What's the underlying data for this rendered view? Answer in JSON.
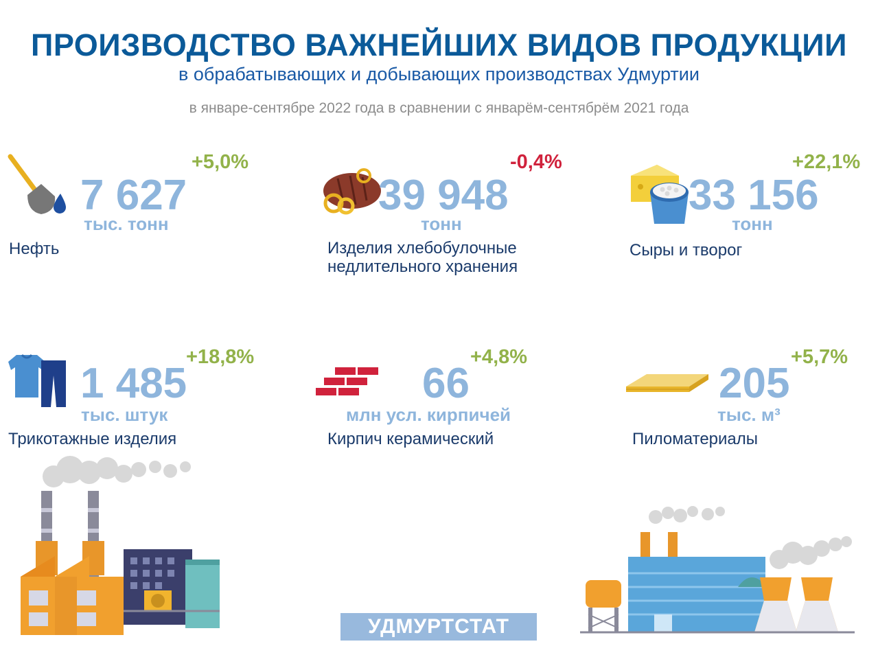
{
  "header": {
    "title": "ПРОИЗВОДСТВО ВАЖНЕЙШИХ ВИДОВ ПРОДУКЦИИ",
    "subtitle": "в обрабатывающих и добывающих производствах Удмуртии",
    "period": "в январе-сентябре 2022 года в сравнении с январём-сентябрём 2021 года"
  },
  "products": [
    {
      "name": "Нефть",
      "value": "7 627",
      "unit": "тыс. тонн",
      "change": "+5,0%",
      "trend": "up",
      "icon": "oil-shovel-icon"
    },
    {
      "name": "Изделия хлебобулочные",
      "name_line2": "недлительного хранения",
      "value": "39 948",
      "unit": "тонн",
      "change": "-0,4%",
      "trend": "down",
      "icon": "bread-icon"
    },
    {
      "name": "Сыры и творог",
      "value": "33 156",
      "unit": "тонн",
      "change": "+22,1%",
      "trend": "up",
      "icon": "cheese-icon"
    },
    {
      "name": "Трикотажные изделия",
      "value": "1 485",
      "unit": "тыс. штук",
      "change": "+18,8%",
      "trend": "up",
      "icon": "knitwear-icon"
    },
    {
      "name": "Кирпич керамический",
      "value": "66",
      "unit": "млн усл. кирпичей",
      "change": "+4,8%",
      "trend": "up",
      "icon": "brick-icon"
    },
    {
      "name": "Пиломатериалы",
      "value": "205",
      "unit": "тыс. м³",
      "change": "+5,7%",
      "trend": "up",
      "icon": "lumber-icon"
    }
  ],
  "colors": {
    "up": "#92b24a",
    "down": "#d0223c",
    "value": "#8eb5dc",
    "title": "#0b5a99"
  },
  "footer": {
    "brand": "УДМУРТСТАТ"
  }
}
